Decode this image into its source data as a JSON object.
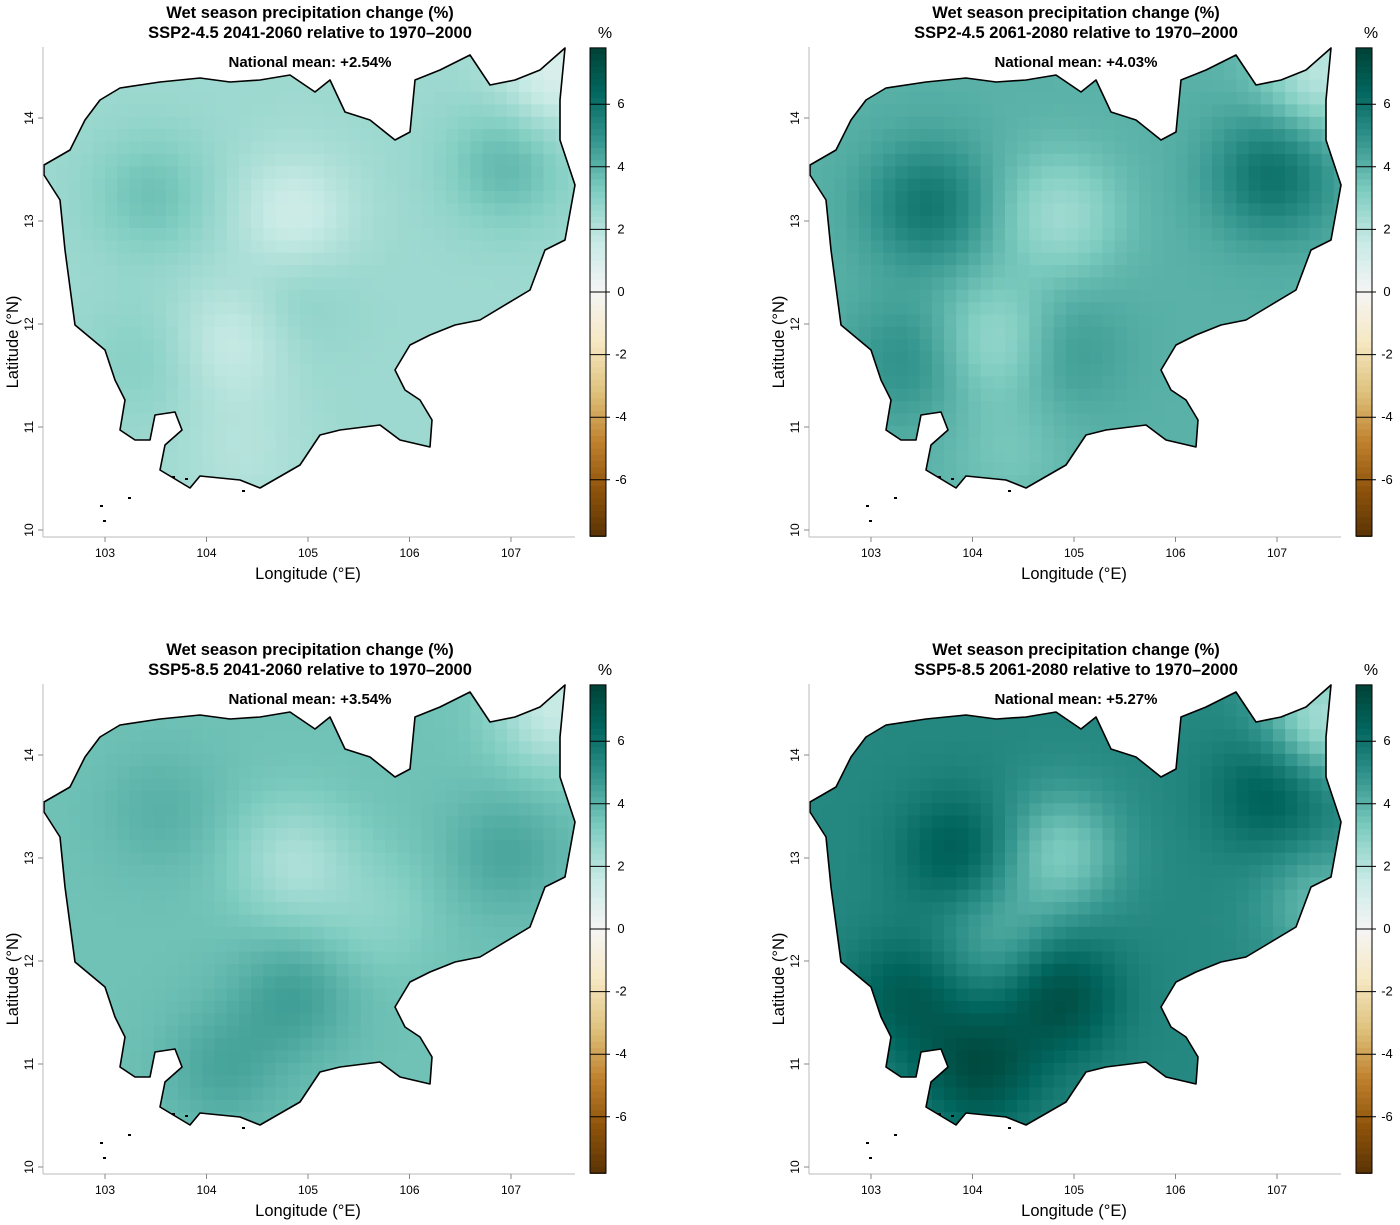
{
  "chart_data": [
    {
      "type": "heatmap",
      "title": "Wet season precipitation change (%)",
      "subtitle": "SSP2-4.5 2041-2060 relative to 1970–2000",
      "annotation": "National mean: +2.54%",
      "mean": 2.54,
      "xlabel": "Longitude (°E)",
      "ylabel": "Latitude (°N)",
      "xticks": [
        "103",
        "104",
        "105",
        "106",
        "107"
      ],
      "yticks": [
        "10",
        "11",
        "12",
        "13",
        "14"
      ],
      "xlim": [
        102.4,
        107.65
      ],
      "ylim": [
        9.95,
        14.7
      ],
      "colorbar": {
        "label": "%",
        "ticks": [
          "6",
          "4",
          "2",
          "0",
          "-2",
          "-4",
          "-6"
        ],
        "range": [
          -7.8,
          7.8
        ]
      }
    },
    {
      "type": "heatmap",
      "title": "Wet season precipitation change (%)",
      "subtitle": "SSP2-4.5 2061-2080 relative to 1970–2000",
      "annotation": "National mean: +4.03%",
      "mean": 4.03,
      "xlabel": "Longitude (°E)",
      "ylabel": "Latitude (°N)",
      "xticks": [
        "103",
        "104",
        "105",
        "106",
        "107"
      ],
      "yticks": [
        "10",
        "11",
        "12",
        "13",
        "14"
      ],
      "xlim": [
        102.4,
        107.65
      ],
      "ylim": [
        9.95,
        14.7
      ],
      "colorbar": {
        "label": "%",
        "ticks": [
          "6",
          "4",
          "2",
          "0",
          "-2",
          "-4",
          "-6"
        ],
        "range": [
          -7.8,
          7.8
        ]
      }
    },
    {
      "type": "heatmap",
      "title": "Wet season precipitation change (%)",
      "subtitle": "SSP5-8.5 2041-2060 relative to 1970–2000",
      "annotation": "National mean: +3.54%",
      "mean": 3.54,
      "xlabel": "Longitude (°E)",
      "ylabel": "Latitude (°N)",
      "xticks": [
        "103",
        "104",
        "105",
        "106",
        "107"
      ],
      "yticks": [
        "10",
        "11",
        "12",
        "13",
        "14"
      ],
      "xlim": [
        102.4,
        107.65
      ],
      "ylim": [
        9.95,
        14.7
      ],
      "colorbar": {
        "label": "%",
        "ticks": [
          "6",
          "4",
          "2",
          "0",
          "-2",
          "-4",
          "-6"
        ],
        "range": [
          -7.8,
          7.8
        ]
      }
    },
    {
      "type": "heatmap",
      "title": "Wet season precipitation change (%)",
      "subtitle": "SSP5-8.5 2061-2080 relative to 1970–2000",
      "annotation": "National mean: +5.27%",
      "mean": 5.27,
      "xlabel": "Longitude (°E)",
      "ylabel": "Latitude (°N)",
      "xticks": [
        "103",
        "104",
        "105",
        "106",
        "107"
      ],
      "yticks": [
        "10",
        "11",
        "12",
        "13",
        "14"
      ],
      "xlim": [
        102.4,
        107.65
      ],
      "ylim": [
        9.95,
        14.7
      ],
      "colorbar": {
        "label": "%",
        "ticks": [
          "6",
          "4",
          "2",
          "0",
          "-2",
          "-4",
          "-6"
        ],
        "range": [
          -7.8,
          7.8
        ]
      }
    }
  ],
  "colors": {
    "stops": [
      "#543005",
      "#8c510a",
      "#bf812d",
      "#dfc27d",
      "#f6e8c3",
      "#f5f5f5",
      "#c7eae5",
      "#80cdc1",
      "#35978f",
      "#01665e",
      "#003c30"
    ]
  }
}
